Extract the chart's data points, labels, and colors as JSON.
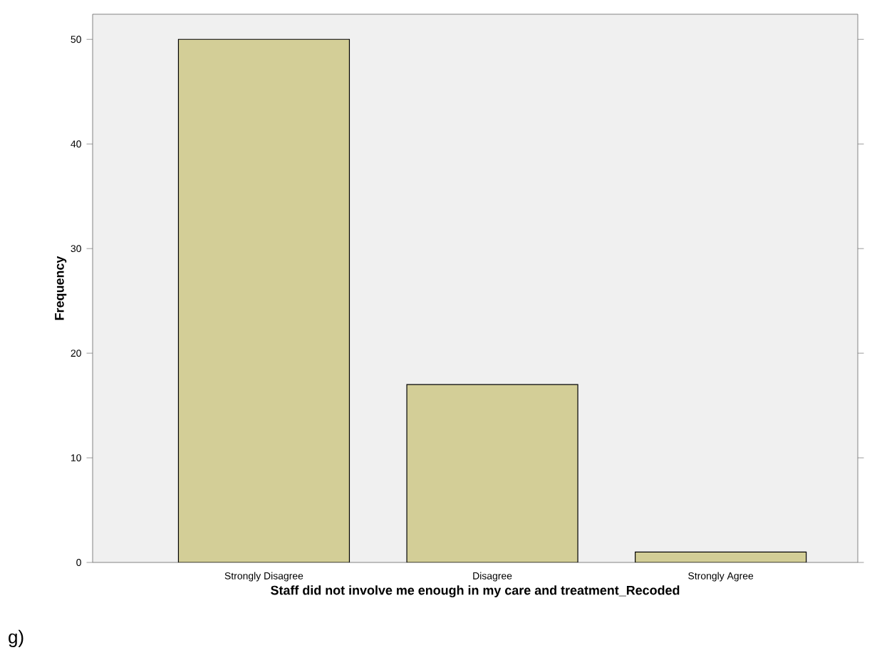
{
  "chart_data": {
    "type": "bar",
    "xlabel": "Staff did not involve me enough in my care and treatment_Recoded",
    "ylabel": "Frequency",
    "categories": [
      "Strongly Disagree",
      "Disagree",
      "Strongly Agree"
    ],
    "values": [
      50,
      17,
      1
    ],
    "color": "#d3ce97",
    "ylim": [
      0,
      52.4
    ],
    "yticks": [
      0,
      10,
      20,
      30,
      40,
      50
    ],
    "grid": false,
    "annotations": [
      "g)"
    ]
  }
}
